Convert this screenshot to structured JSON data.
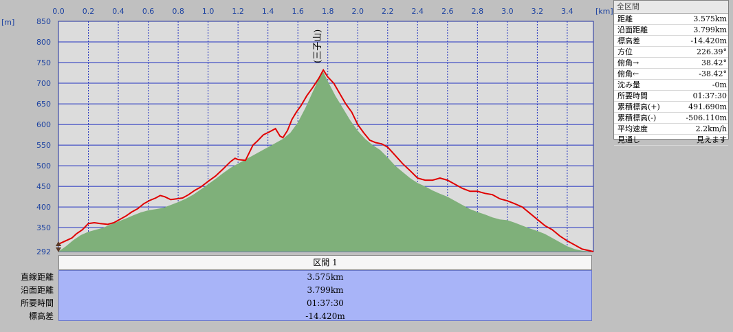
{
  "chart_data": {
    "type": "area",
    "x_unit": "[km]",
    "y_unit": "[m]",
    "x_ticks": [
      "0.0",
      "0.2",
      "0.4",
      "0.6",
      "0.8",
      "1.0",
      "1.2",
      "1.4",
      "1.6",
      "1.8",
      "2.0",
      "2.2",
      "2.4",
      "2.6",
      "2.8",
      "3.0",
      "3.2",
      "3.4"
    ],
    "y_ticks": [
      "850",
      "800",
      "750",
      "700",
      "650",
      "600",
      "550",
      "500",
      "450",
      "400",
      "350",
      "292"
    ],
    "xlim": [
      0,
      3.575
    ],
    "ylim": [
      292,
      850
    ],
    "peak_label": "(三子山)",
    "peak": {
      "x": 1.77,
      "y": 732
    },
    "series": [
      {
        "type": "area",
        "color": "#7fb07a",
        "x": [
          0.0,
          0.05,
          0.1,
          0.15,
          0.2,
          0.25,
          0.3,
          0.35,
          0.4,
          0.45,
          0.5,
          0.55,
          0.6,
          0.65,
          0.7,
          0.75,
          0.8,
          0.85,
          0.9,
          0.95,
          1.0,
          1.05,
          1.1,
          1.15,
          1.2,
          1.25,
          1.3,
          1.35,
          1.4,
          1.45,
          1.5,
          1.55,
          1.6,
          1.65,
          1.7,
          1.75,
          1.77,
          1.8,
          1.85,
          1.9,
          1.95,
          2.0,
          2.05,
          2.1,
          2.15,
          2.2,
          2.25,
          2.3,
          2.35,
          2.4,
          2.45,
          2.5,
          2.55,
          2.6,
          2.65,
          2.7,
          2.75,
          2.8,
          2.85,
          2.9,
          2.95,
          3.0,
          3.05,
          3.1,
          3.15,
          3.2,
          3.25,
          3.3,
          3.35,
          3.4,
          3.45,
          3.5,
          3.575
        ],
        "y": [
          292,
          305,
          320,
          332,
          340,
          345,
          350,
          358,
          365,
          372,
          380,
          387,
          392,
          395,
          398,
          405,
          412,
          420,
          430,
          442,
          455,
          468,
          482,
          495,
          505,
          515,
          525,
          535,
          545,
          555,
          565,
          580,
          605,
          640,
          680,
          718,
          727,
          705,
          670,
          640,
          610,
          585,
          565,
          550,
          538,
          520,
          500,
          485,
          470,
          458,
          450,
          440,
          432,
          425,
          415,
          405,
          395,
          388,
          382,
          375,
          370,
          368,
          362,
          355,
          348,
          342,
          335,
          325,
          315,
          305,
          298,
          294,
          292
        ]
      },
      {
        "type": "line",
        "color": "#e00000",
        "x": [
          0.0,
          0.03,
          0.06,
          0.09,
          0.12,
          0.16,
          0.2,
          0.24,
          0.28,
          0.33,
          0.37,
          0.41,
          0.45,
          0.49,
          0.53,
          0.57,
          0.61,
          0.65,
          0.68,
          0.71,
          0.75,
          0.79,
          0.83,
          0.87,
          0.91,
          0.95,
          1.0,
          1.05,
          1.1,
          1.15,
          1.18,
          1.2,
          1.25,
          1.3,
          1.33,
          1.37,
          1.41,
          1.45,
          1.48,
          1.5,
          1.53,
          1.56,
          1.59,
          1.62,
          1.66,
          1.7,
          1.74,
          1.77,
          1.8,
          1.84,
          1.88,
          1.92,
          1.96,
          2.0,
          2.04,
          2.08,
          2.12,
          2.16,
          2.2,
          2.25,
          2.3,
          2.35,
          2.4,
          2.45,
          2.5,
          2.55,
          2.6,
          2.65,
          2.7,
          2.75,
          2.8,
          2.85,
          2.9,
          2.95,
          3.0,
          3.05,
          3.1,
          3.15,
          3.2,
          3.25,
          3.3,
          3.35,
          3.4,
          3.45,
          3.5,
          3.575
        ],
        "y": [
          310,
          315,
          320,
          325,
          335,
          345,
          360,
          362,
          360,
          358,
          362,
          370,
          378,
          388,
          396,
          408,
          416,
          422,
          428,
          425,
          418,
          420,
          422,
          430,
          440,
          448,
          462,
          475,
          492,
          510,
          518,
          515,
          513,
          550,
          560,
          575,
          582,
          590,
          572,
          568,
          585,
          612,
          630,
          645,
          670,
          690,
          712,
          732,
          715,
          700,
          675,
          650,
          630,
          600,
          580,
          562,
          556,
          553,
          545,
          525,
          505,
          488,
          470,
          465,
          465,
          470,
          465,
          455,
          445,
          438,
          438,
          433,
          430,
          420,
          415,
          408,
          400,
          385,
          370,
          355,
          345,
          330,
          318,
          308,
          298,
          292
        ]
      }
    ]
  },
  "summary_panel": {
    "title": "全区間",
    "rows": [
      {
        "label": "距離",
        "value": "3.575km"
      },
      {
        "label": "沿面距離",
        "value": "3.799km"
      },
      {
        "label": "標高差",
        "value": "-14.420m"
      },
      {
        "label": "方位",
        "value": "226.39°"
      },
      {
        "label": "俯角→",
        "value": "38.42°"
      },
      {
        "label": "俯角←",
        "value": "-38.42°"
      },
      {
        "label": "沈み量",
        "value": "-0m"
      },
      {
        "label": "所要時間",
        "value": "01:37:30"
      },
      {
        "label": "累積標高(+)",
        "value": "491.690m"
      },
      {
        "label": "累積標高(-)",
        "value": "-506.110m"
      },
      {
        "label": "平均速度",
        "value": "2.2km/h"
      },
      {
        "label": "見通し",
        "value": "見えます"
      }
    ]
  },
  "sections": {
    "header": "区間 1",
    "row_labels": [
      "直線距離",
      "沿面距離",
      "所要時間",
      "標高差"
    ],
    "values": [
      "3.575km",
      "3.799km",
      "01:37:30",
      "-14.420m"
    ]
  }
}
